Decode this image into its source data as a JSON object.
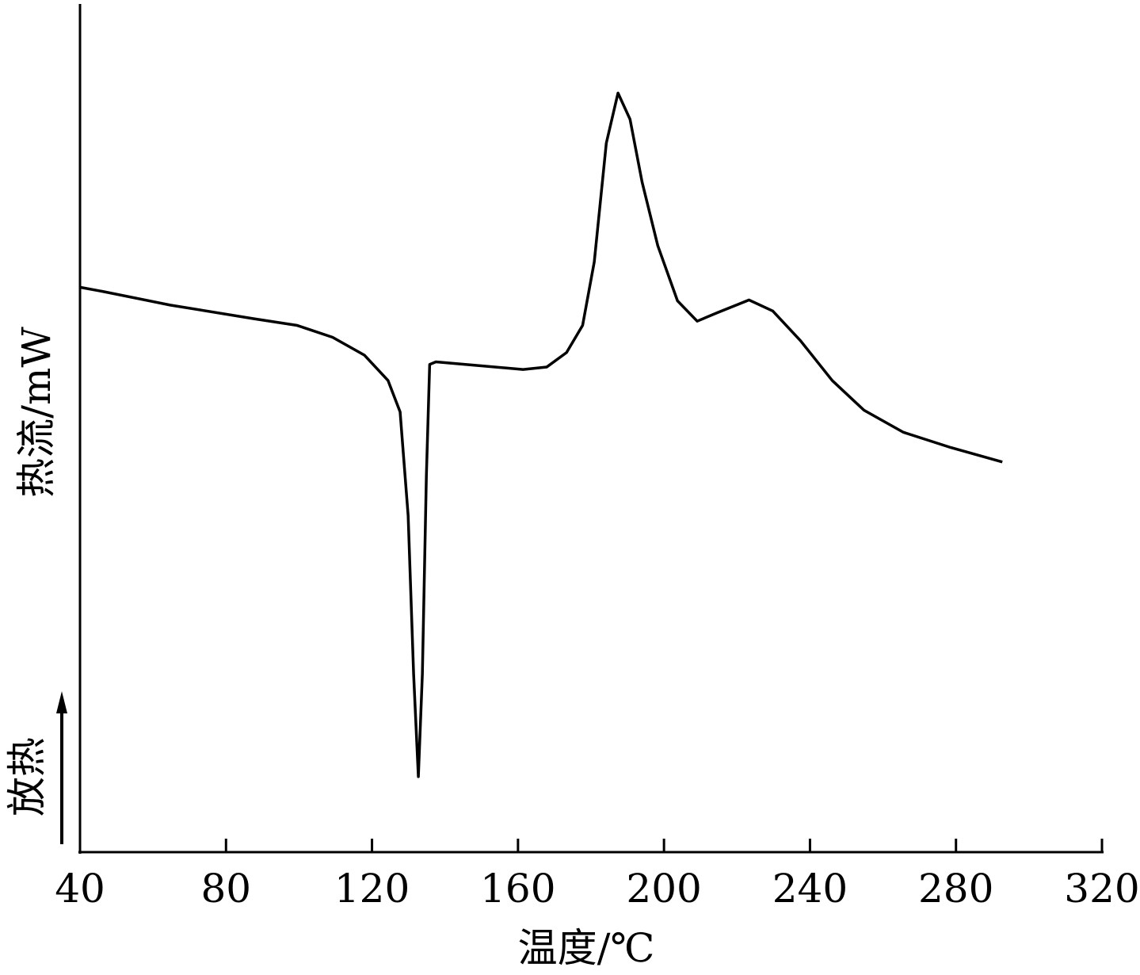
{
  "chart_data": {
    "type": "line",
    "x_label": "温度/℃",
    "y_label": "热流/mW",
    "annotation": "放热",
    "xlim": [
      40,
      320
    ],
    "xticks": [
      40,
      80,
      120,
      160,
      200,
      240,
      280,
      320
    ],
    "ylim": [
      0,
      100
    ],
    "series": [
      {
        "color": "#000000",
        "x": [
          40,
          46.3,
          64.7,
          87.5,
          99.5,
          109.2,
          117.9,
          124.4,
          127.7,
          129.9,
          131.4,
          132.7,
          133.8,
          134.9,
          135.8,
          137.5,
          148.4,
          161.4,
          167.9,
          173.3,
          177.7,
          180.9,
          184.2,
          187.4,
          190.7,
          194.0,
          198.3,
          203.7,
          209.1,
          214.6,
          223.3,
          229.8,
          237.4,
          246.1,
          254.8,
          265.6,
          278.6,
          292.7
        ],
        "values": [
          66.6,
          66.1,
          64.5,
          62.9,
          62.1,
          60.7,
          58.6,
          55.6,
          51.9,
          39.7,
          21.0,
          8.9,
          21.0,
          44.4,
          57.5,
          57.8,
          57.4,
          56.9,
          57.2,
          58.9,
          62.1,
          69.6,
          83.6,
          89.5,
          86.4,
          79.0,
          71.5,
          65.0,
          62.6,
          63.6,
          65.1,
          63.8,
          60.3,
          55.6,
          52.1,
          49.5,
          47.7,
          46.0
        ]
      }
    ]
  }
}
